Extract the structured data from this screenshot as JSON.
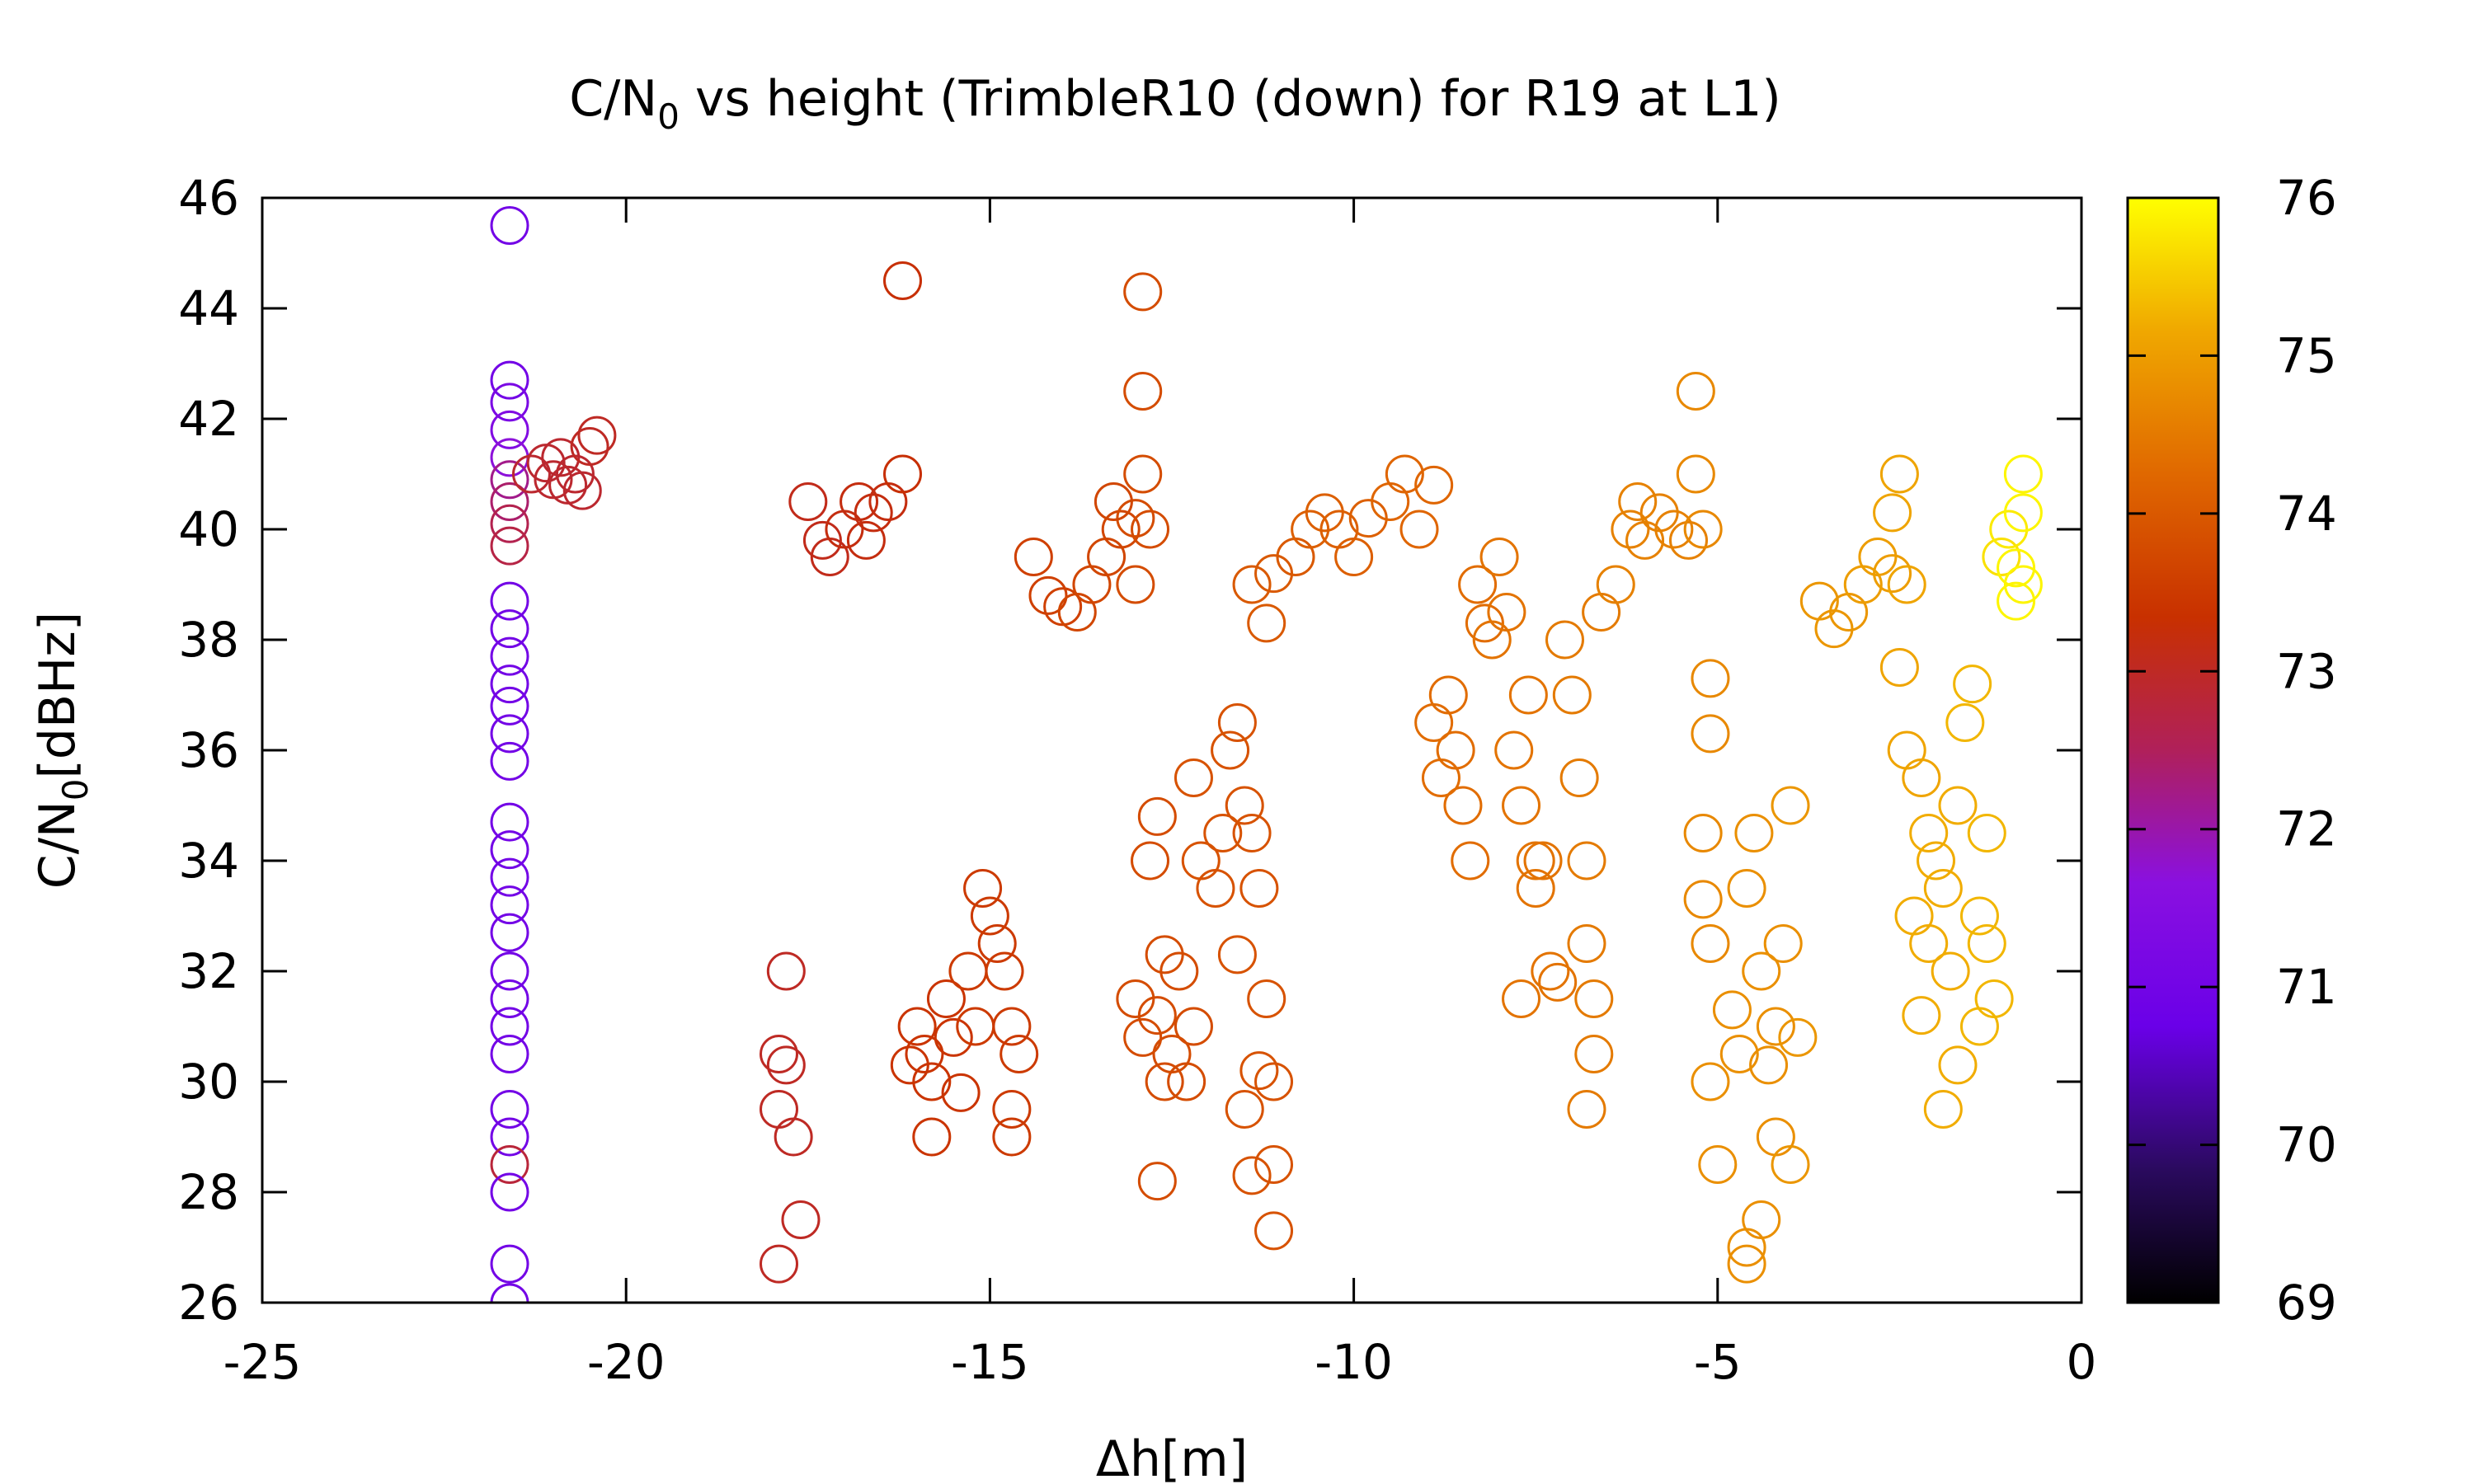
{
  "chart_data": {
    "type": "scatter",
    "title_main": "C/N",
    "title_sub": "0",
    "title_rest": " vs height (TrimbleR10 (down) for R19 at L1)",
    "xlabel": "Δh[m]",
    "ylabel_main": "C/N",
    "ylabel_sub": "0",
    "ylabel_rest": "[dBHz]",
    "xlim": [
      -25,
      0
    ],
    "ylim": [
      26,
      46
    ],
    "xticks": [
      -25,
      -20,
      -15,
      -10,
      -5,
      0
    ],
    "yticks": [
      26,
      28,
      30,
      32,
      34,
      36,
      38,
      40,
      42,
      44,
      46
    ],
    "color_range": [
      69,
      76
    ],
    "colorbar_ticks": [
      69,
      70,
      71,
      72,
      73,
      74,
      75,
      76
    ],
    "marker": "open-circle",
    "grid": false,
    "points": [
      [
        -21.6,
        45.5,
        71.0
      ],
      [
        -21.6,
        42.7,
        71.0
      ],
      [
        -21.6,
        42.3,
        71.2
      ],
      [
        -21.6,
        41.8,
        71.4
      ],
      [
        -21.6,
        41.3,
        71.7
      ],
      [
        -21.6,
        40.9,
        72.2
      ],
      [
        -21.6,
        40.5,
        72.4
      ],
      [
        -21.6,
        40.1,
        72.6
      ],
      [
        -21.6,
        39.7,
        72.7
      ],
      [
        -21.6,
        38.7,
        71.0
      ],
      [
        -21.6,
        38.2,
        71.0
      ],
      [
        -21.6,
        37.7,
        71.0
      ],
      [
        -21.6,
        37.2,
        71.0
      ],
      [
        -21.6,
        36.8,
        71.0
      ],
      [
        -21.6,
        36.3,
        71.0
      ],
      [
        -21.6,
        35.8,
        71.0
      ],
      [
        -21.6,
        34.7,
        71.0
      ],
      [
        -21.6,
        34.2,
        71.0
      ],
      [
        -21.6,
        33.7,
        71.0
      ],
      [
        -21.6,
        33.2,
        71.0
      ],
      [
        -21.6,
        32.7,
        71.0
      ],
      [
        -21.6,
        32.0,
        71.0
      ],
      [
        -21.6,
        31.5,
        71.0
      ],
      [
        -21.6,
        31.0,
        71.0
      ],
      [
        -21.6,
        30.5,
        71.0
      ],
      [
        -21.6,
        29.5,
        71.0
      ],
      [
        -21.6,
        29.0,
        71.0
      ],
      [
        -21.6,
        28.5,
        72.8
      ],
      [
        -21.6,
        28.0,
        71.0
      ],
      [
        -21.6,
        26.7,
        71.0
      ],
      [
        -21.6,
        26.0,
        71.0
      ],
      [
        -21.3,
        41.0,
        72.9
      ],
      [
        -21.1,
        41.2,
        72.9
      ],
      [
        -20.9,
        41.3,
        72.9
      ],
      [
        -20.7,
        41.0,
        72.9
      ],
      [
        -20.5,
        41.5,
        73.0
      ],
      [
        -20.4,
        41.7,
        73.0
      ],
      [
        -21.0,
        40.9,
        72.9
      ],
      [
        -20.8,
        40.8,
        72.9
      ],
      [
        -20.6,
        40.7,
        72.9
      ],
      [
        -17.8,
        32.0,
        73.0
      ],
      [
        -17.9,
        30.5,
        73.0
      ],
      [
        -17.8,
        30.3,
        73.0
      ],
      [
        -17.9,
        29.5,
        73.0
      ],
      [
        -17.7,
        29.0,
        73.0
      ],
      [
        -17.6,
        27.5,
        73.0
      ],
      [
        -17.9,
        26.7,
        73.0
      ],
      [
        -17.5,
        40.5,
        73.1
      ],
      [
        -17.3,
        39.8,
        73.1
      ],
      [
        -17.2,
        39.5,
        73.1
      ],
      [
        -17.0,
        40.0,
        73.2
      ],
      [
        -16.8,
        40.5,
        73.2
      ],
      [
        -16.6,
        40.3,
        73.2
      ],
      [
        -16.4,
        40.5,
        73.2
      ],
      [
        -16.2,
        41.0,
        73.3
      ],
      [
        -16.7,
        39.8,
        73.2
      ],
      [
        -16.2,
        44.5,
        73.3
      ],
      [
        -16.0,
        31.0,
        73.4
      ],
      [
        -15.9,
        30.5,
        73.4
      ],
      [
        -15.8,
        30.0,
        73.4
      ],
      [
        -15.6,
        31.5,
        73.4
      ],
      [
        -15.5,
        30.8,
        73.4
      ],
      [
        -15.4,
        29.8,
        73.4
      ],
      [
        -15.3,
        32.0,
        73.5
      ],
      [
        -15.1,
        33.5,
        73.5
      ],
      [
        -15.0,
        33.0,
        73.5
      ],
      [
        -14.9,
        32.5,
        73.5
      ],
      [
        -14.8,
        32.0,
        73.5
      ],
      [
        -15.8,
        29.0,
        73.4
      ],
      [
        -14.7,
        31.0,
        73.5
      ],
      [
        -14.6,
        30.5,
        73.5
      ],
      [
        -14.7,
        29.0,
        73.5
      ],
      [
        -14.7,
        29.5,
        73.5
      ],
      [
        -15.2,
        31.0,
        73.5
      ],
      [
        -16.1,
        30.3,
        73.4
      ],
      [
        -14.4,
        39.5,
        73.6
      ],
      [
        -14.2,
        38.8,
        73.6
      ],
      [
        -14.0,
        38.6,
        73.6
      ],
      [
        -13.8,
        38.5,
        73.7
      ],
      [
        -13.6,
        39.0,
        73.7
      ],
      [
        -13.4,
        39.5,
        73.7
      ],
      [
        -13.2,
        40.0,
        73.7
      ],
      [
        -13.0,
        40.2,
        73.8
      ],
      [
        -12.8,
        40.0,
        73.8
      ],
      [
        -13.3,
        40.5,
        73.7
      ],
      [
        -12.9,
        44.3,
        73.8
      ],
      [
        -12.9,
        42.5,
        73.8
      ],
      [
        -12.9,
        41.0,
        73.8
      ],
      [
        -13.0,
        39.0,
        73.8
      ],
      [
        -13.0,
        31.5,
        73.8
      ],
      [
        -12.9,
        30.8,
        73.8
      ],
      [
        -12.7,
        31.2,
        73.8
      ],
      [
        -12.6,
        30.0,
        73.8
      ],
      [
        -12.5,
        30.5,
        73.8
      ],
      [
        -12.4,
        32.0,
        73.8
      ],
      [
        -12.3,
        30.0,
        73.8
      ],
      [
        -12.2,
        31.0,
        73.8
      ],
      [
        -12.7,
        28.2,
        73.8
      ],
      [
        -12.6,
        32.3,
        73.8
      ],
      [
        -12.8,
        34.0,
        73.8
      ],
      [
        -12.7,
        34.8,
        73.8
      ],
      [
        -12.2,
        35.5,
        73.9
      ],
      [
        -12.1,
        34.0,
        73.9
      ],
      [
        -11.9,
        33.5,
        73.9
      ],
      [
        -11.8,
        34.5,
        73.9
      ],
      [
        -11.7,
        36.0,
        73.9
      ],
      [
        -11.6,
        36.5,
        73.9
      ],
      [
        -11.5,
        35.0,
        73.9
      ],
      [
        -11.4,
        34.5,
        73.9
      ],
      [
        -11.3,
        33.5,
        73.9
      ],
      [
        -11.6,
        32.3,
        73.9
      ],
      [
        -11.5,
        29.5,
        73.9
      ],
      [
        -11.4,
        28.3,
        73.9
      ],
      [
        -11.3,
        30.2,
        73.9
      ],
      [
        -11.2,
        31.5,
        73.9
      ],
      [
        -11.1,
        28.5,
        73.9
      ],
      [
        -11.1,
        27.3,
        73.9
      ],
      [
        -11.1,
        30.0,
        73.9
      ],
      [
        -11.4,
        39.0,
        74.0
      ],
      [
        -11.2,
        38.3,
        74.0
      ],
      [
        -11.1,
        39.2,
        74.0
      ],
      [
        -10.8,
        39.5,
        74.0
      ],
      [
        -10.6,
        40.0,
        74.1
      ],
      [
        -10.4,
        40.3,
        74.1
      ],
      [
        -10.2,
        40.0,
        74.1
      ],
      [
        -10.0,
        39.5,
        74.1
      ],
      [
        -9.8,
        40.2,
        74.1
      ],
      [
        -9.5,
        40.5,
        74.2
      ],
      [
        -9.3,
        41.0,
        74.2
      ],
      [
        -9.1,
        40.0,
        74.2
      ],
      [
        -8.9,
        40.8,
        74.2
      ],
      [
        -8.9,
        36.5,
        74.3
      ],
      [
        -8.8,
        35.5,
        74.3
      ],
      [
        -8.7,
        37.0,
        74.3
      ],
      [
        -8.6,
        36.0,
        74.3
      ],
      [
        -8.5,
        35.0,
        74.3
      ],
      [
        -8.4,
        34.0,
        74.3
      ],
      [
        -8.3,
        39.0,
        74.3
      ],
      [
        -8.2,
        38.3,
        74.3
      ],
      [
        -8.1,
        38.0,
        74.4
      ],
      [
        -8.0,
        39.5,
        74.4
      ],
      [
        -7.9,
        38.5,
        74.4
      ],
      [
        -7.8,
        36.0,
        74.4
      ],
      [
        -7.7,
        35.0,
        74.4
      ],
      [
        -7.6,
        37.0,
        74.4
      ],
      [
        -7.5,
        33.5,
        74.4
      ],
      [
        -7.4,
        34.0,
        74.4
      ],
      [
        -7.3,
        32.0,
        74.4
      ],
      [
        -7.2,
        31.8,
        74.4
      ],
      [
        -7.1,
        38.0,
        74.5
      ],
      [
        -7.0,
        37.0,
        74.5
      ],
      [
        -6.9,
        35.5,
        74.5
      ],
      [
        -6.8,
        34.0,
        74.5
      ],
      [
        -6.8,
        32.5,
        74.5
      ],
      [
        -6.7,
        31.5,
        74.5
      ],
      [
        -6.8,
        29.5,
        74.5
      ],
      [
        -7.7,
        31.5,
        74.4
      ],
      [
        -7.5,
        34.0,
        74.4
      ],
      [
        -6.7,
        30.5,
        74.5
      ],
      [
        -6.6,
        38.5,
        74.5
      ],
      [
        -6.4,
        39.0,
        74.6
      ],
      [
        -6.2,
        40.0,
        74.6
      ],
      [
        -6.0,
        39.8,
        74.6
      ],
      [
        -5.8,
        40.3,
        74.6
      ],
      [
        -5.6,
        40.0,
        74.6
      ],
      [
        -5.4,
        39.8,
        74.6
      ],
      [
        -5.2,
        40.0,
        74.7
      ],
      [
        -6.1,
        40.5,
        74.6
      ],
      [
        -5.3,
        42.5,
        74.7
      ],
      [
        -5.3,
        41.0,
        74.7
      ],
      [
        -5.1,
        37.3,
        74.7
      ],
      [
        -5.1,
        36.3,
        74.7
      ],
      [
        -5.2,
        34.5,
        74.7
      ],
      [
        -5.2,
        33.3,
        74.7
      ],
      [
        -5.1,
        32.5,
        74.7
      ],
      [
        -5.1,
        30.0,
        74.8
      ],
      [
        -5.0,
        28.5,
        74.8
      ],
      [
        -4.8,
        31.3,
        74.8
      ],
      [
        -4.7,
        30.5,
        74.8
      ],
      [
        -4.6,
        33.5,
        74.8
      ],
      [
        -4.5,
        34.5,
        74.8
      ],
      [
        -4.4,
        32.0,
        74.8
      ],
      [
        -4.3,
        30.3,
        74.8
      ],
      [
        -4.2,
        31.0,
        74.8
      ],
      [
        -4.1,
        32.5,
        74.8
      ],
      [
        -4.0,
        35.0,
        74.9
      ],
      [
        -3.9,
        30.8,
        74.9
      ],
      [
        -4.4,
        27.5,
        74.8
      ],
      [
        -4.6,
        27.0,
        74.8
      ],
      [
        -4.2,
        29.0,
        74.8
      ],
      [
        -4.0,
        28.5,
        74.9
      ],
      [
        -4.6,
        26.7,
        74.8
      ],
      [
        -3.6,
        38.7,
        74.9
      ],
      [
        -3.4,
        38.2,
        74.9
      ],
      [
        -3.2,
        38.5,
        74.9
      ],
      [
        -3.0,
        39.0,
        75.0
      ],
      [
        -2.8,
        39.5,
        75.0
      ],
      [
        -2.6,
        39.2,
        75.0
      ],
      [
        -2.4,
        39.0,
        75.1
      ],
      [
        -2.5,
        41.0,
        75.1
      ],
      [
        -2.6,
        40.3,
        75.1
      ],
      [
        -2.5,
        37.5,
        75.1
      ],
      [
        -2.4,
        36.0,
        75.1
      ],
      [
        -2.2,
        35.5,
        75.1
      ],
      [
        -2.1,
        34.5,
        75.2
      ],
      [
        -2.3,
        33.0,
        75.2
      ],
      [
        -2.1,
        32.5,
        75.2
      ],
      [
        -1.9,
        33.5,
        75.2
      ],
      [
        -1.8,
        32.0,
        75.2
      ],
      [
        -1.7,
        35.0,
        75.2
      ],
      [
        -1.6,
        36.5,
        75.3
      ],
      [
        -1.5,
        37.2,
        75.3
      ],
      [
        -1.4,
        33.0,
        75.3
      ],
      [
        -1.3,
        32.5,
        75.3
      ],
      [
        -1.3,
        34.5,
        75.3
      ],
      [
        -1.2,
        31.5,
        75.3
      ],
      [
        -2.2,
        31.2,
        75.2
      ],
      [
        -1.9,
        29.5,
        75.2
      ],
      [
        -1.7,
        30.3,
        75.2
      ],
      [
        -2.0,
        34.0,
        75.2
      ],
      [
        -1.4,
        31.0,
        75.3
      ],
      [
        -1.1,
        39.5,
        75.7
      ],
      [
        -1.0,
        40.0,
        75.8
      ],
      [
        -0.9,
        39.3,
        75.9
      ],
      [
        -0.8,
        41.0,
        75.9
      ],
      [
        -0.8,
        40.3,
        75.9
      ],
      [
        -0.8,
        39.0,
        75.9
      ],
      [
        -0.9,
        38.7,
        75.9
      ]
    ]
  }
}
